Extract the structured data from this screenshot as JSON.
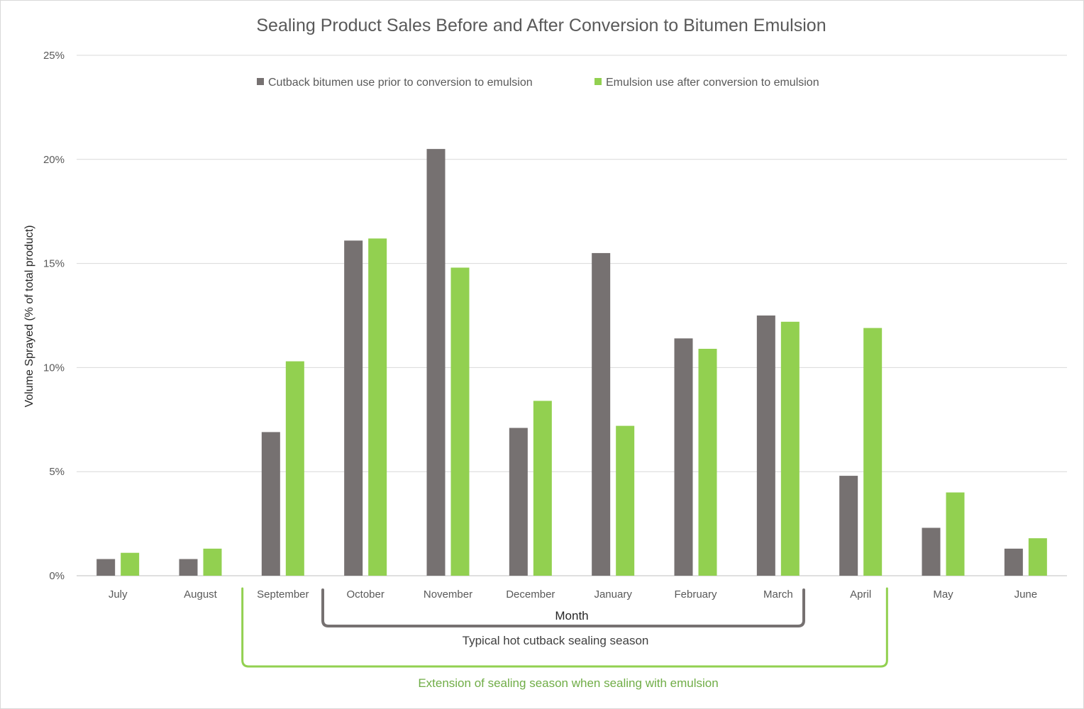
{
  "chart_data": {
    "type": "bar",
    "title": "Sealing Product Sales Before and After Conversion to Bitumen Emulsion",
    "xlabel": "Month",
    "ylabel": "Volume Sprayed (% of total product)",
    "ylim": [
      0,
      25
    ],
    "yticks": [
      "0%",
      "5%",
      "10%",
      "15%",
      "20%",
      "25%"
    ],
    "grid": true,
    "legend_position": "top-center",
    "categories": [
      "July",
      "August",
      "September",
      "October",
      "November",
      "December",
      "January",
      "February",
      "March",
      "April",
      "May",
      "June"
    ],
    "series": [
      {
        "name": "Cutback bitumen use prior to conversion to emulsion",
        "color": "#767171",
        "values": [
          0.8,
          0.8,
          6.9,
          16.1,
          20.5,
          7.1,
          15.5,
          11.4,
          12.5,
          4.8,
          2.3,
          1.3
        ]
      },
      {
        "name": "Emulsion use after conversion to emulsion",
        "color": "#92d050",
        "values": [
          1.1,
          1.3,
          10.3,
          16.2,
          14.8,
          8.4,
          7.2,
          10.9,
          12.2,
          11.9,
          4.0,
          1.8
        ]
      }
    ],
    "annotations": {
      "cutback_season": {
        "label": "Typical hot cutback sealing season",
        "color": "#767171",
        "from": "October",
        "to": "March"
      },
      "emulsion_season": {
        "label": "Extension of sealing season when sealing with emulsion",
        "color": "#92d050",
        "label_color": "#70ad47",
        "from": "September",
        "to": "April"
      }
    }
  }
}
